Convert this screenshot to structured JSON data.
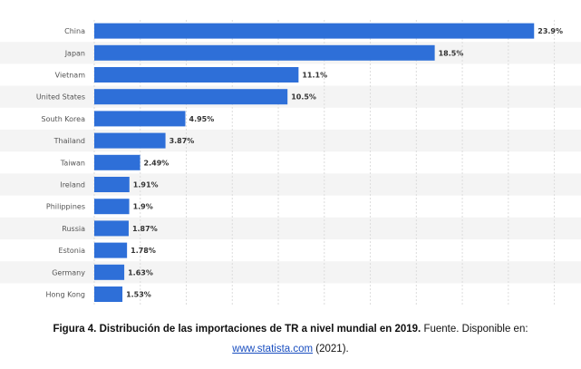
{
  "chart_data": {
    "type": "bar",
    "orientation": "horizontal",
    "categories": [
      "China",
      "Japan",
      "Vietnam",
      "United States",
      "South Korea",
      "Thailand",
      "Taiwan",
      "Ireland",
      "Philippines",
      "Russia",
      "Estonia",
      "Germany",
      "Hong Kong"
    ],
    "values": [
      23.9,
      18.5,
      11.1,
      10.5,
      4.95,
      3.87,
      2.49,
      1.91,
      1.9,
      1.87,
      1.78,
      1.63,
      1.53
    ],
    "value_labels": [
      "23.9%",
      "18.5%",
      "11.1%",
      "10.5%",
      "4.95%",
      "3.87%",
      "2.49%",
      "1.91%",
      "1.9%",
      "1.87%",
      "1.78%",
      "1.63%",
      "1.53%"
    ],
    "xlim": [
      0,
      25
    ],
    "grid": true,
    "bar_color": "#2e6fd8",
    "title": "",
    "xlabel": "",
    "ylabel": ""
  },
  "caption": {
    "bold": "Figura 4. Distribución de las importaciones de TR a nivel mundial en 2019.",
    "text": " Fuente. Disponible en:",
    "link": "www.statista.com",
    "suffix": " (2021)."
  }
}
